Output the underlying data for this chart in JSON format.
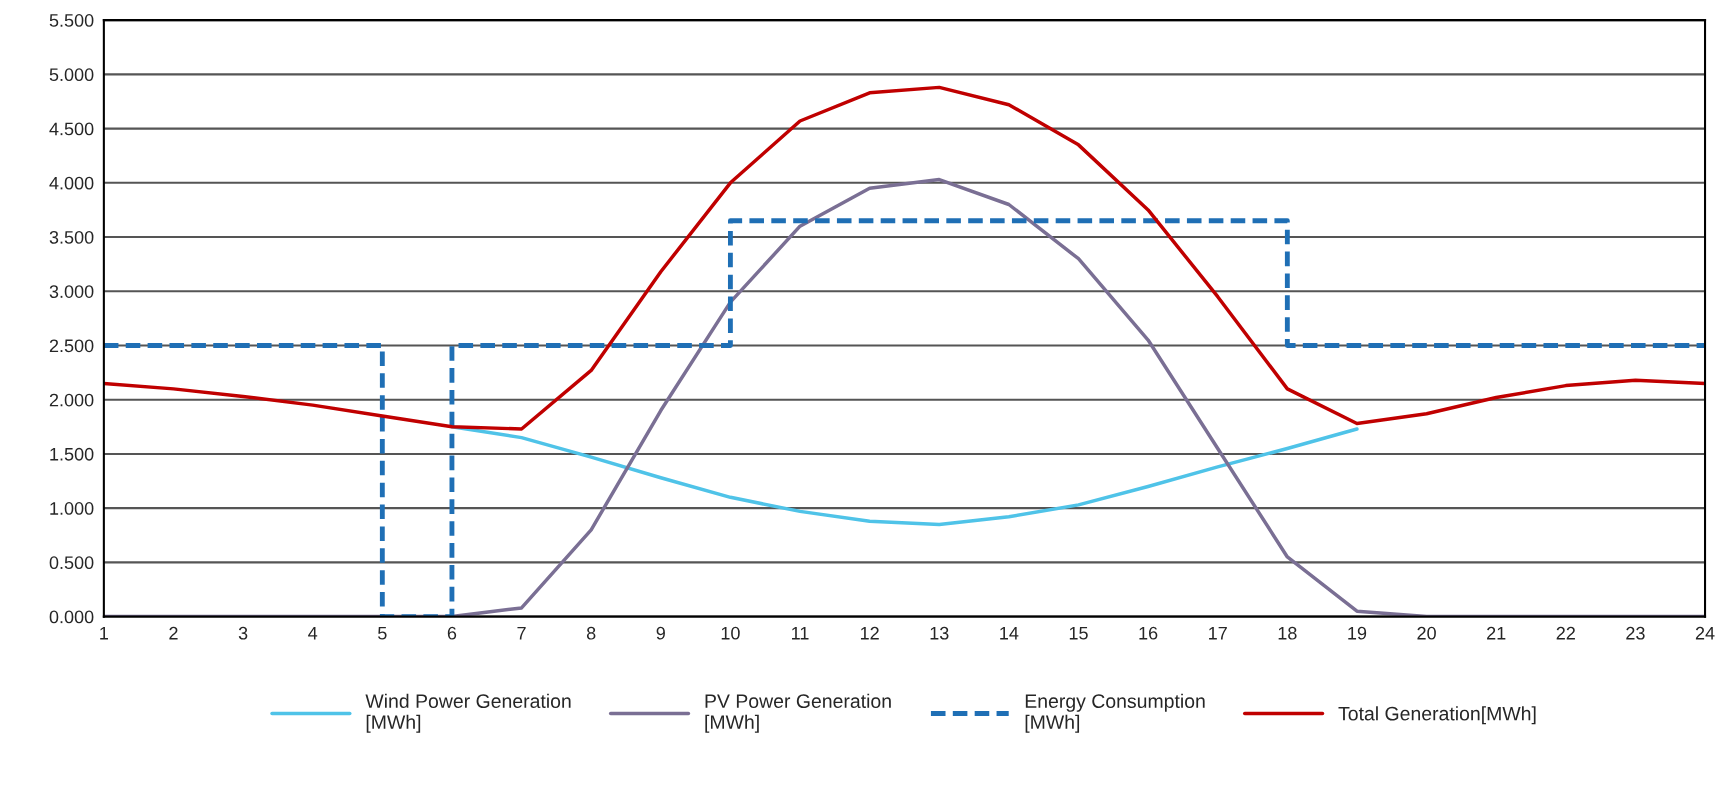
{
  "chart_data": {
    "type": "line",
    "x": [
      1,
      2,
      3,
      4,
      5,
      6,
      7,
      8,
      9,
      10,
      11,
      12,
      13,
      14,
      15,
      16,
      17,
      18,
      19,
      20,
      21,
      22,
      23,
      24
    ],
    "xlim": [
      1,
      24
    ],
    "xticks": [
      1,
      2,
      3,
      4,
      5,
      6,
      7,
      8,
      9,
      10,
      11,
      12,
      13,
      14,
      15,
      16,
      17,
      18,
      19,
      20,
      21,
      22,
      23,
      24
    ],
    "ylim": [
      0,
      5.5
    ],
    "yticks": [
      {
        "value": 0,
        "label": "0.000"
      },
      {
        "value": 0.5,
        "label": "0.500"
      },
      {
        "value": 1,
        "label": "1.000"
      },
      {
        "value": 1.5,
        "label": "1.500"
      },
      {
        "value": 2,
        "label": "2.000"
      },
      {
        "value": 2.5,
        "label": "2.500"
      },
      {
        "value": 3,
        "label": "3.000"
      },
      {
        "value": 3.5,
        "label": "3.500"
      },
      {
        "value": 4,
        "label": "4.000"
      },
      {
        "value": 4.5,
        "label": "4.500"
      },
      {
        "value": 5,
        "label": "5.000"
      },
      {
        "value": 5.5,
        "label": "5.500"
      }
    ],
    "grid": "y",
    "legend": "bottom",
    "marker": "none",
    "series": [
      {
        "name": "Wind Power Generation\n[MWh]",
        "color": "#4fc3e8",
        "line_style": "solid",
        "values": [
          null,
          null,
          null,
          null,
          null,
          1.75,
          1.65,
          1.47,
          1.28,
          1.1,
          0.97,
          0.88,
          0.85,
          0.92,
          1.03,
          1.2,
          1.38,
          1.55,
          1.73,
          null,
          null,
          null,
          null,
          null
        ]
      },
      {
        "name": "PV Power Generation\n[MWh]",
        "color": "#7a6f94",
        "line_style": "solid",
        "values": [
          0,
          0,
          0,
          0,
          0,
          0,
          0.08,
          0.8,
          1.9,
          2.9,
          3.6,
          3.95,
          4.03,
          3.8,
          3.3,
          2.55,
          1.55,
          0.55,
          0.05,
          0,
          0,
          0,
          0,
          0
        ]
      },
      {
        "name": "Energy Consumption\n[MWh]",
        "color": "#1f6fb5",
        "type": "step",
        "line_style": "dashed",
        "values": [
          2.5,
          2.5,
          2.5,
          2.5,
          0,
          2.5,
          2.5,
          2.5,
          2.5,
          3.65,
          3.65,
          3.65,
          3.65,
          3.65,
          3.65,
          3.65,
          3.65,
          2.5,
          2.5,
          2.5,
          2.5,
          2.5,
          2.5,
          2.5
        ]
      },
      {
        "name": "Total Generation[MWh]",
        "color": "#c00000",
        "line_style": "solid",
        "values": [
          2.15,
          2.1,
          2.03,
          1.95,
          1.85,
          1.75,
          1.73,
          2.27,
          3.18,
          4.0,
          4.57,
          4.83,
          4.88,
          4.72,
          4.35,
          3.75,
          2.95,
          2.1,
          1.78,
          1.87,
          2.02,
          2.13,
          2.18,
          2.15
        ]
      }
    ]
  }
}
